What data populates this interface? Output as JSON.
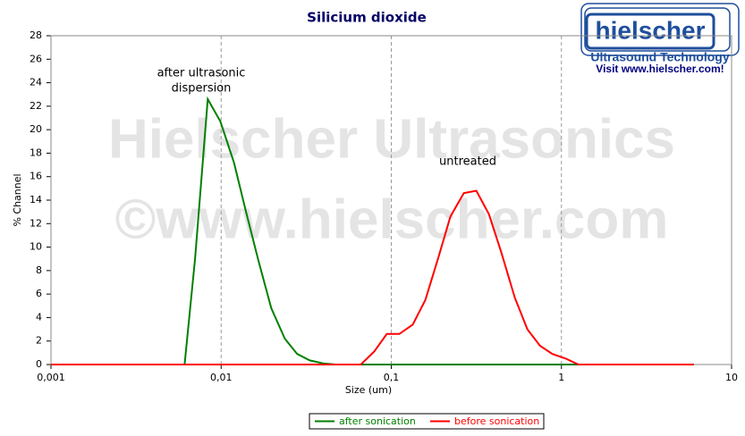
{
  "chart_data": {
    "type": "line",
    "title": "Silicium dioxide",
    "x_label": "Size (um)",
    "y_label": "% Channel",
    "x_scale": "log",
    "grid": "x",
    "xlim": [
      0.001,
      10
    ],
    "xticks": [
      {
        "value": 0.001,
        "label": "0,001"
      },
      {
        "value": 0.01,
        "label": "0,01"
      },
      {
        "value": 0.1,
        "label": "0,1"
      },
      1,
      10
    ],
    "ylim": [
      0,
      28
    ],
    "yticks": [
      0,
      2,
      4,
      6,
      8,
      10,
      12,
      14,
      16,
      18,
      20,
      22,
      24,
      26,
      28
    ],
    "series": [
      {
        "name": "after sonication",
        "color": "#008000",
        "x": [
          0.001,
          0.0061,
          0.00703,
          0.00834,
          0.0099,
          0.0119,
          0.014,
          0.0166,
          0.0197,
          0.0237,
          0.028,
          0.0332,
          0.0398,
          0.0472,
          6.0
        ],
        "values": [
          0,
          0,
          9,
          22.6,
          20.7,
          17.2,
          13,
          8.8,
          4.8,
          2.2,
          0.9,
          0.35,
          0.1,
          0,
          0
        ]
      },
      {
        "name": "before sonication",
        "color": "#ff0000",
        "x": [
          0.001,
          0.0662,
          0.0794,
          0.0941,
          0.1115,
          0.1337,
          0.1585,
          0.188,
          0.2225,
          0.267,
          0.316,
          0.375,
          0.444,
          0.532,
          0.631,
          0.748,
          0.885,
          1.062,
          1.259,
          6.0
        ],
        "values": [
          0,
          0,
          1.1,
          2.6,
          2.6,
          3.4,
          5.5,
          9,
          12.6,
          14.6,
          14.8,
          12.8,
          9.5,
          5.7,
          3,
          1.6,
          0.9,
          0.5,
          0,
          0
        ]
      }
    ],
    "annotations": [
      {
        "lines": [
          "after ultrasonic",
          "dispersion"
        ]
      },
      {
        "lines": [
          "untreated"
        ]
      }
    ],
    "watermark": [
      "Hielscher Ultrasonics",
      "©www.hielscher.com"
    ],
    "logo": {
      "brand": "hielscher",
      "tagline": "Ultrasound Technology",
      "link": "Visit www.hielscher.com!"
    }
  }
}
